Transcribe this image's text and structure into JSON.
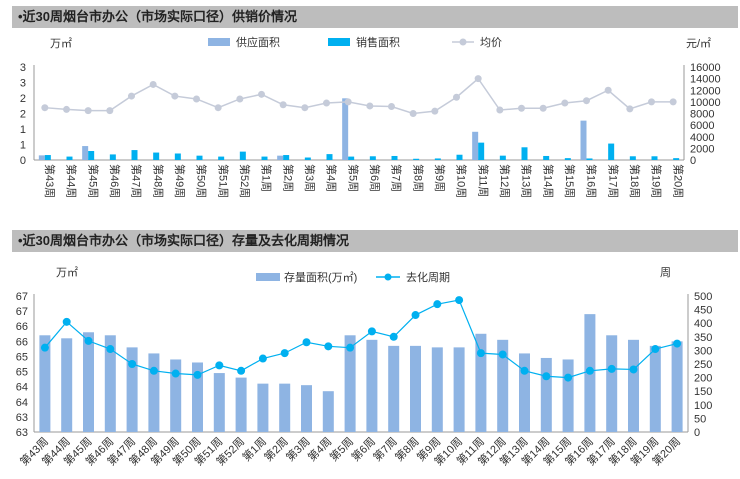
{
  "chart_data": [
    {
      "type": "bar",
      "title": "•近30周烟台市办公（市场实际口径）供销价情况",
      "unit_left": "万㎡",
      "unit_right": "元/㎡",
      "categories": [
        "第43周",
        "第44周",
        "第45周",
        "第46周",
        "第47周",
        "第48周",
        "第49周",
        "第50周",
        "第51周",
        "第52周",
        "第1周",
        "第2周",
        "第3周",
        "第4周",
        "第5周",
        "第6周",
        "第7周",
        "第8周",
        "第9周",
        "第10周",
        "第11周",
        "第12周",
        "第13周",
        "第14周",
        "第15周",
        "第16周",
        "第17周",
        "第18周",
        "第19周",
        "第20周"
      ],
      "y_ticks_left": [
        "0",
        "1",
        "1",
        "2",
        "2",
        "3",
        "3"
      ],
      "ylim_left": [
        0,
        3
      ],
      "y_ticks_right": [
        "0",
        "2000",
        "4000",
        "6000",
        "8000",
        "10000",
        "12000",
        "14000",
        "16000"
      ],
      "ylim_right": [
        0,
        16000
      ],
      "series": [
        {
          "name": "供应面积",
          "type": "bar",
          "color": "#8eb4e3",
          "values": [
            0.15,
            0,
            0.45,
            0,
            0,
            0,
            0,
            0,
            0,
            0,
            0,
            0.14,
            0,
            0,
            1.99,
            0,
            0,
            0,
            0,
            0,
            0.91,
            0,
            0,
            0,
            0,
            1.27,
            0,
            0,
            0,
            0
          ]
        },
        {
          "name": "销售面积",
          "type": "bar",
          "color": "#00b0f0",
          "values": [
            0.16,
            0.11,
            0.29,
            0.18,
            0.32,
            0.24,
            0.21,
            0.14,
            0.11,
            0.27,
            0.11,
            0.16,
            0.08,
            0.19,
            0.11,
            0.12,
            0.13,
            0.04,
            0.05,
            0.17,
            0.56,
            0.14,
            0.41,
            0.13,
            0.06,
            0.05,
            0.53,
            0.12,
            0.12,
            0.06
          ]
        },
        {
          "name": "均价",
          "type": "line",
          "color": "#c5cbd9",
          "values": [
            9000,
            8700,
            8500,
            8500,
            11000,
            13000,
            11000,
            10500,
            9000,
            10500,
            11300,
            9500,
            9000,
            9800,
            10000,
            9300,
            9200,
            8000,
            8400,
            10800,
            14000,
            8600,
            8900,
            8900,
            9800,
            10200,
            12000,
            8800,
            10000,
            10000
          ]
        }
      ]
    },
    {
      "type": "bar",
      "title": "•近30周烟台市办公（市场实际口径）存量及去化周期情况",
      "unit_left": "万㎡",
      "unit_right": "周",
      "categories": [
        "第43周",
        "第44周",
        "第45周",
        "第46周",
        "第47周",
        "第48周",
        "第49周",
        "第50周",
        "第51周",
        "第52周",
        "第1周",
        "第2周",
        "第3周",
        "第4周",
        "第5周",
        "第6周",
        "第7周",
        "第8周",
        "第9周",
        "第10周",
        "第11周",
        "第12周",
        "第13周",
        "第14周",
        "第15周",
        "第16周",
        "第17周",
        "第18周",
        "第19周",
        "第20周"
      ],
      "y_ticks_left": [
        "63",
        "63",
        "64",
        "64",
        "65",
        "65",
        "66",
        "66",
        "67",
        "67"
      ],
      "ylim_left": [
        63,
        67.5
      ],
      "y_ticks_right": [
        "0",
        "50",
        "100",
        "150",
        "200",
        "250",
        "300",
        "350",
        "400",
        "450",
        "500"
      ],
      "ylim_right": [
        0,
        500
      ],
      "series": [
        {
          "name": "存量面积(万㎡)",
          "type": "bar",
          "color": "#8eb4e3",
          "values": [
            66.2,
            66.1,
            66.3,
            66.2,
            65.8,
            65.6,
            65.4,
            65.3,
            64.95,
            64.8,
            64.6,
            64.6,
            64.55,
            64.35,
            66.2,
            66.05,
            65.85,
            65.85,
            65.8,
            65.8,
            66.25,
            66.05,
            65.6,
            65.45,
            65.4,
            66.9,
            66.2,
            66.05,
            65.85,
            66.0
          ]
        },
        {
          "name": "去化周期",
          "type": "line",
          "color": "#00b0f0",
          "values": [
            310,
            405,
            335,
            305,
            250,
            225,
            215,
            210,
            245,
            225,
            270,
            290,
            330,
            315,
            310,
            370,
            350,
            430,
            470,
            485,
            290,
            285,
            225,
            205,
            200,
            225,
            232,
            230,
            305,
            325
          ]
        }
      ]
    }
  ]
}
